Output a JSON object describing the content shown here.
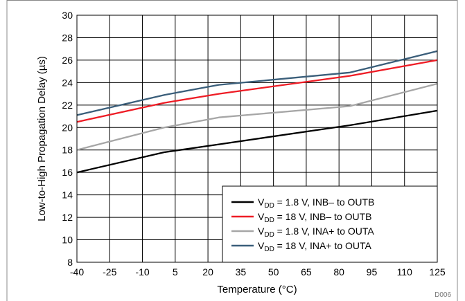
{
  "chart_data": {
    "type": "line",
    "xlabel": "Temperature (°C)",
    "ylabel": "Low-to-High Propagation Delay (µs)",
    "xlim": [
      -40,
      125
    ],
    "ylim": [
      8,
      30
    ],
    "xticks": [
      "-40",
      "-25",
      "-10",
      "5",
      "20",
      "35",
      "50",
      "65",
      "80",
      "95",
      "110",
      "125"
    ],
    "yticks": [
      "8",
      "10",
      "12",
      "14",
      "16",
      "18",
      "20",
      "22",
      "24",
      "26",
      "28",
      "30"
    ],
    "grid": true,
    "legend_position": "bottom-right",
    "figure_code": "D006",
    "series": [
      {
        "name_main": "V",
        "name_sub": "DD",
        "name_rest": " = 1.8 V, INB– to OUTB",
        "color": "#000000",
        "points": [
          [
            -40,
            16.0
          ],
          [
            0,
            17.8
          ],
          [
            25,
            18.5
          ],
          [
            85,
            20.2
          ],
          [
            125,
            21.5
          ]
        ]
      },
      {
        "name_main": "V",
        "name_sub": "DD",
        "name_rest": " = 18 V, INB– to OUTB",
        "color": "#ee1c25",
        "points": [
          [
            -40,
            20.5
          ],
          [
            0,
            22.2
          ],
          [
            25,
            23.0
          ],
          [
            85,
            24.6
          ],
          [
            125,
            26.0
          ]
        ]
      },
      {
        "name_main": "V",
        "name_sub": "DD",
        "name_rest": " = 1.8 V, INA+ to OUTA",
        "color": "#a6a6a6",
        "points": [
          [
            -40,
            18.0
          ],
          [
            0,
            20.0
          ],
          [
            25,
            20.9
          ],
          [
            85,
            21.9
          ],
          [
            125,
            23.9
          ]
        ]
      },
      {
        "name_main": "V",
        "name_sub": "DD",
        "name_rest": " = 18 V, INA+ to OUTA",
        "color": "#3a5e7a",
        "points": [
          [
            -40,
            21.1
          ],
          [
            0,
            22.9
          ],
          [
            25,
            23.8
          ],
          [
            85,
            24.9
          ],
          [
            125,
            26.8
          ]
        ]
      }
    ]
  }
}
